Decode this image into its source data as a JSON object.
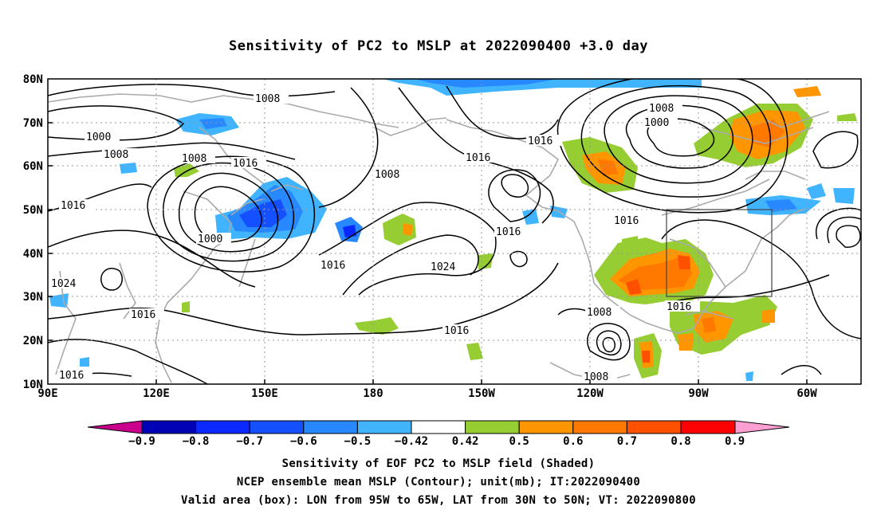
{
  "title": "Sensitivity of PC2 to MSLP at 2022090400 +3.0 day",
  "lat_labels": [
    "80N",
    "70N",
    "60N",
    "50N",
    "40N",
    "30N",
    "20N",
    "10N"
  ],
  "lon_labels": [
    "90E",
    "120E",
    "150E",
    "180",
    "150W",
    "120W",
    "90W",
    "60W"
  ],
  "contour_labels": [
    "1008",
    "1000",
    "1008",
    "1016",
    "1008",
    "1016",
    "1016",
    "1008",
    "1000",
    "1016",
    "1008",
    "1016",
    "1016",
    "1000",
    "1016",
    "1024",
    "1024",
    "1016",
    "1016",
    "1016",
    "1008",
    "1008",
    "1016"
  ],
  "colorbar": {
    "ticks": [
      "−0.9",
      "−0.8",
      "−0.7",
      "−0.6",
      "−0.5",
      "−0.42",
      "0.42",
      "0.5",
      "0.6",
      "0.7",
      "0.8",
      "0.9"
    ],
    "colors": [
      "#0000b4",
      "#0a28ff",
      "#1450ff",
      "#2888ff",
      "#40b4ff",
      "#ffffff",
      "#96cd32",
      "#ff9600",
      "#ff7800",
      "#ff5000",
      "#ff0000"
    ],
    "low_color": "#c8008c",
    "high_color": "#ff9ed2"
  },
  "box": {
    "lon_west": "95W",
    "lon_east": "65W",
    "lat_south": "30N",
    "lat_north": "50N"
  },
  "captions": [
    "Sensitivity of EOF PC2 to MSLP field (Shaded)",
    "NCEP ensemble mean MSLP (Contour); unit(mb); IT:2022090400",
    "Valid area (box): LON from 95W to 65W, LAT from 30N to 50N; VT: 2022090800"
  ]
}
